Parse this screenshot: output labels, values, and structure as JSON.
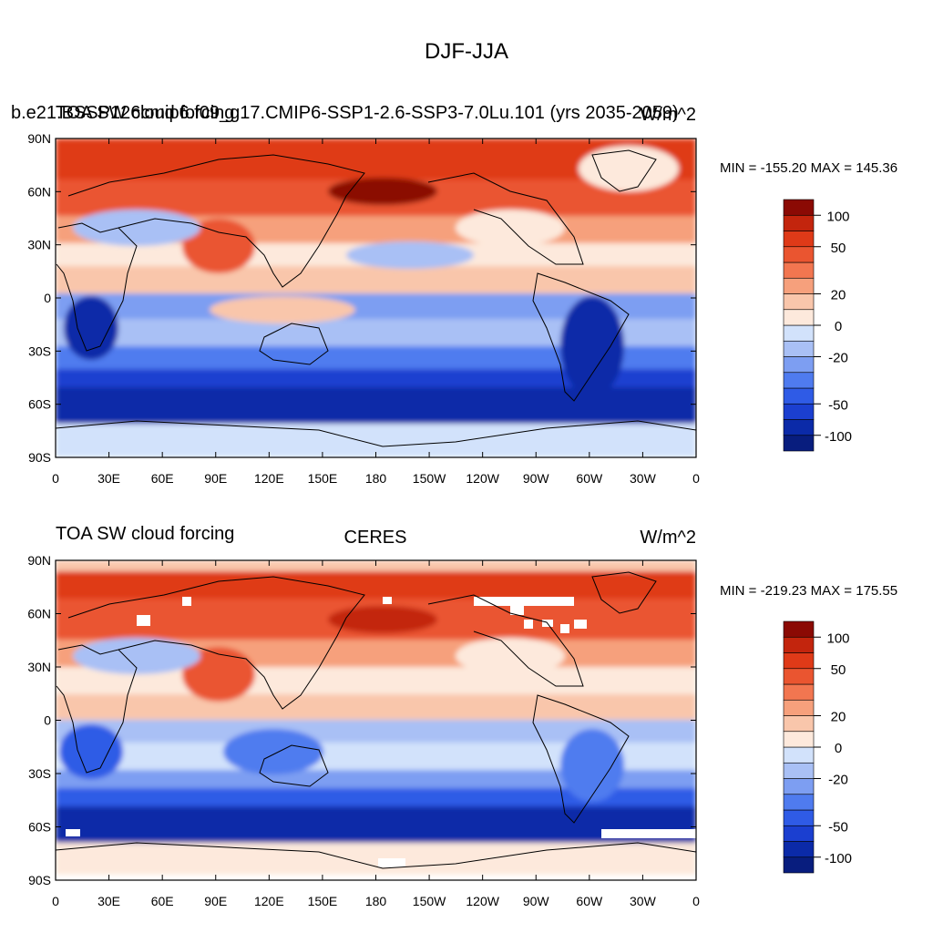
{
  "figure": {
    "title": "DJF-JJA"
  },
  "chart_data": [
    {
      "type": "heatmap",
      "left_title": "b.e21.BSSP126cmip6.f09_g17.CMIP6-SSP1-2.6-SSP3-7.0Lu.101 (yrs 2035-2059)",
      "left_title_overlap": "TOA SW cloud forcing",
      "center_title": "",
      "right_title": "W/m^2",
      "minmax_text": "MIN = -155.20 MAX = 145.36",
      "min": -155.2,
      "max": 145.36,
      "x_ticks": [
        "0",
        "30E",
        "60E",
        "90E",
        "120E",
        "150E",
        "180",
        "150W",
        "120W",
        "90W",
        "60W",
        "30W",
        "0"
      ],
      "y_ticks": [
        "90N",
        "60N",
        "30N",
        "0",
        "30S",
        "60S",
        "90S"
      ]
    },
    {
      "type": "heatmap",
      "left_title": "TOA SW cloud forcing",
      "center_title": "CERES",
      "right_title": "W/m^2",
      "minmax_text": "MIN = -219.23 MAX = 175.55",
      "min": -219.23,
      "max": 175.55,
      "x_ticks": [
        "0",
        "30E",
        "60E",
        "90E",
        "120E",
        "150E",
        "180",
        "150W",
        "120W",
        "90W",
        "60W",
        "30W",
        "0"
      ],
      "y_ticks": [
        "90N",
        "60N",
        "30N",
        "0",
        "30S",
        "60S",
        "90S"
      ]
    }
  ],
  "colorbar": {
    "levels": [
      -150,
      -100,
      -70,
      -50,
      -40,
      -30,
      -20,
      -10,
      0,
      10,
      20,
      30,
      40,
      50,
      70,
      100,
      150
    ],
    "labels": [
      "-100",
      "-50",
      "-20",
      "0",
      "20",
      "50",
      "100"
    ],
    "colors": [
      "#081d7e",
      "#0b2aa8",
      "#1b3fd0",
      "#2f5be6",
      "#4f7bef",
      "#7d9ef2",
      "#a9c0f5",
      "#d2e2fb",
      "#fde9dc",
      "#f9c6ab",
      "#f6a07c",
      "#f27650",
      "#ea5530",
      "#df3a18",
      "#c3250d",
      "#8b0a04"
    ]
  }
}
